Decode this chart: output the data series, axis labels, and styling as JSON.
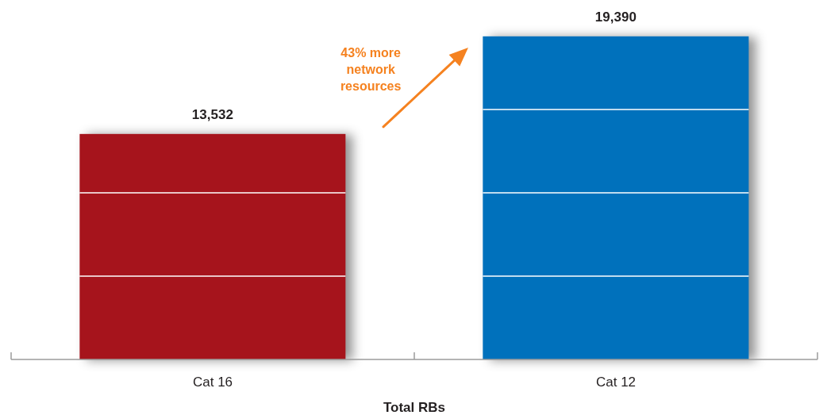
{
  "chart_data": {
    "type": "bar",
    "xlabel": "Total RBs",
    "categories": [
      "Cat 16",
      "Cat 12"
    ],
    "values": [
      13532,
      19390
    ],
    "value_labels": [
      "13,532",
      "19,390"
    ],
    "colors": [
      "#a6141c",
      "#0071bc"
    ],
    "tick_labels": "x",
    "annotations": [
      "43% more network resources"
    ]
  }
}
